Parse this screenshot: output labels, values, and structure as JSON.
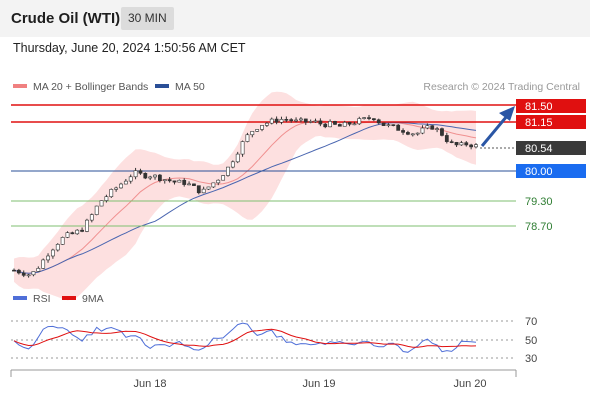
{
  "header": {
    "title": "Crude Oil (WTI)",
    "timeframe": "30 MIN"
  },
  "datetime": "Thursday, June 20, 2024 1:50:56 AM CET",
  "legend": {
    "ma20": "MA 20 + Bollinger Bands",
    "ma50": "MA 50",
    "credit": "Research © 2024 Trading Central"
  },
  "colors": {
    "resistance": "#e01010",
    "support_line": "#7fbf70",
    "current_line": "#2a4f97",
    "bollinger": "#fbd5d5",
    "candle_up": "#ffffff",
    "candle_down": "#333333",
    "rsi": "#4f6fd8",
    "rsi_ma": "#e01010",
    "price_tag_current": "#3a3a3a",
    "price_tag_level": "#1a6cf0"
  },
  "chart_data": [
    {
      "type": "candlestick",
      "x_ticks": [
        "Jun 18",
        "Jun 19",
        "Jun 20"
      ],
      "price_levels": [
        {
          "value": "81.50",
          "kind": "resistance"
        },
        {
          "value": "81.15",
          "kind": "resistance"
        },
        {
          "value": "80.54",
          "kind": "current"
        },
        {
          "value": "80.00",
          "kind": "pivot"
        },
        {
          "value": "79.30",
          "kind": "support"
        },
        {
          "value": "78.70",
          "kind": "support"
        }
      ],
      "ylim": [
        77.9,
        81.6
      ],
      "close_path": [
        78.0,
        77.95,
        77.9,
        78.1,
        78.35,
        78.55,
        78.7,
        78.75,
        78.85,
        79.1,
        79.4,
        79.55,
        79.7,
        79.85,
        80.0,
        79.95,
        79.95,
        79.9,
        79.85,
        79.8,
        79.8,
        79.7,
        79.6,
        79.75,
        79.9,
        80.1,
        80.4,
        80.7,
        80.9,
        81.0,
        81.05,
        81.1,
        81.1,
        81.05,
        81.05,
        81.05,
        81.0,
        81.0,
        80.95,
        81.0,
        81.05,
        81.1,
        81.15,
        81.0,
        80.95,
        80.9,
        80.85,
        80.8,
        80.9,
        80.95,
        80.8,
        80.6,
        80.55,
        80.6,
        80.55
      ],
      "bollinger": "MA 20 + Bollinger Bands",
      "ma50": "MA 50"
    },
    {
      "type": "line",
      "name": "RSI",
      "series_labels": [
        "RSI",
        "9MA"
      ],
      "y_ticks": [
        "70",
        "50",
        "30"
      ],
      "ylim": [
        20,
        80
      ]
    }
  ]
}
